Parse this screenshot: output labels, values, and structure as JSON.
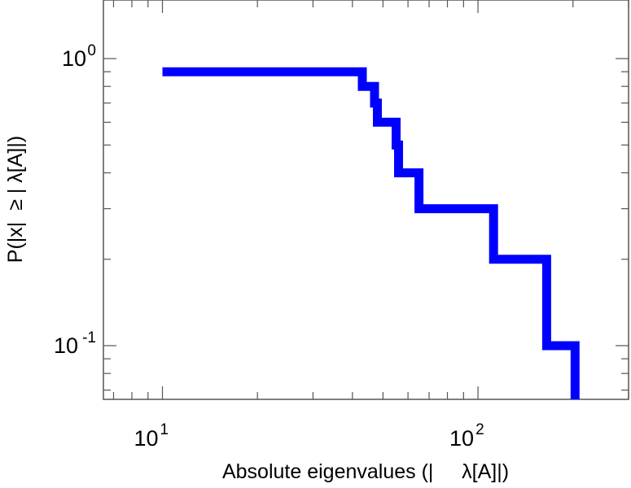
{
  "chart_data": {
    "type": "line",
    "subtype": "step",
    "title": "",
    "xlabel": "Absolute eigenvalues (|     λ[A]|)",
    "ylabel": "P(|x|  ≥ | λ[A]|)",
    "x_scale": "log",
    "y_scale": "log",
    "xlim": [
      6.5,
      300
    ],
    "ylim": [
      0.065,
      1.6
    ],
    "grid": false,
    "x_ticks": [
      {
        "value": 10,
        "base": "10",
        "exp": "1"
      },
      {
        "value": 100,
        "base": "10",
        "exp": "2"
      }
    ],
    "y_ticks": [
      {
        "value": 1,
        "base": "10",
        "exp": "0"
      },
      {
        "value": 0.1,
        "base": "10",
        "exp": "-1"
      }
    ],
    "series_color": "#0000ff",
    "series": [
      {
        "x": [
          10,
          43,
          43,
          47,
          47,
          48,
          48,
          55,
          55,
          56,
          56,
          65,
          65,
          112,
          112,
          165,
          165,
          203,
          203
        ],
        "y": [
          0.9,
          0.9,
          0.8,
          0.8,
          0.7,
          0.7,
          0.6,
          0.6,
          0.5,
          0.5,
          0.4,
          0.4,
          0.3,
          0.3,
          0.2,
          0.2,
          0.1,
          0.1,
          0.065
        ]
      }
    ]
  }
}
